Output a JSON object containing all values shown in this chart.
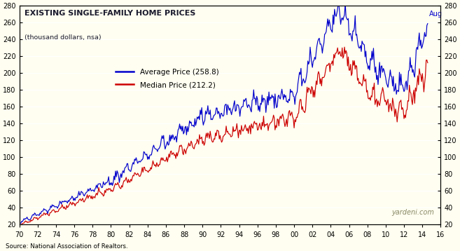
{
  "title": "EXISTING SINGLE-FAMILY HOME PRICES",
  "subtitle": "(thousand dollars, nsa)",
  "source_text": "Source: National Association of Realtors.",
  "watermark": "yardeni.com",
  "legend_avg": "Average Price (258.8)",
  "legend_med": "Median Price (212.2)",
  "avg_annotation": "Aug",
  "color_avg": "#0000cc",
  "color_med": "#cc0000",
  "bg_color": "#fffef0",
  "plot_bg_color": "#fffef0",
  "ylim": [
    20,
    280
  ],
  "yticks": [
    20,
    40,
    60,
    80,
    100,
    120,
    140,
    160,
    180,
    200,
    220,
    240,
    260,
    280
  ],
  "xlim": [
    70,
    116
  ],
  "xtick_positions": [
    70,
    72,
    74,
    76,
    78,
    80,
    82,
    84,
    86,
    88,
    90,
    92,
    94,
    96,
    98,
    100,
    102,
    104,
    106,
    108,
    110,
    112,
    114,
    116
  ],
  "xtick_labels": [
    "70",
    "72",
    "74",
    "76",
    "78",
    "80",
    "82",
    "84",
    "86",
    "88",
    "90",
    "92",
    "94",
    "96",
    "98",
    "00",
    "02",
    "04",
    "06",
    "08",
    "10",
    "12",
    "14",
    "16"
  ]
}
